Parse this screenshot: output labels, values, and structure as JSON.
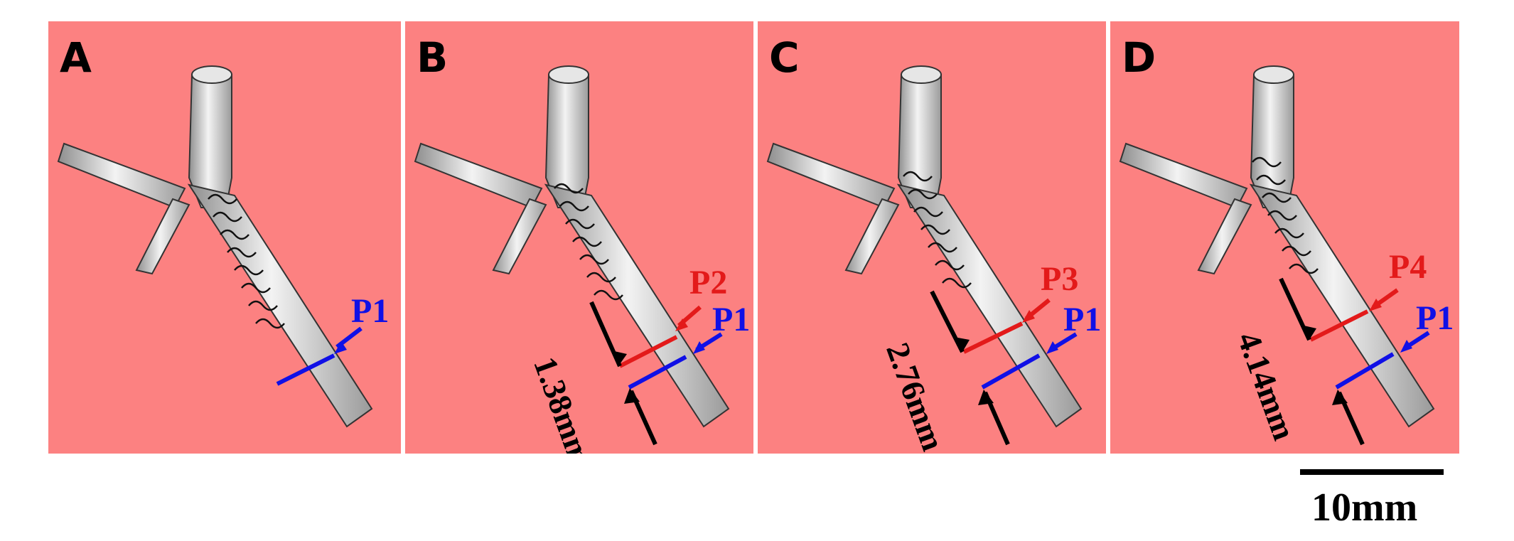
{
  "panels": [
    {
      "id": "A",
      "letter": "A",
      "markers": [
        {
          "label": "P1",
          "color": "#1010e6"
        }
      ]
    },
    {
      "id": "B",
      "letter": "B",
      "markers": [
        {
          "label": "P2",
          "color": "#e31a1a"
        },
        {
          "label": "P1",
          "color": "#1010e6"
        }
      ],
      "distance_label": "1.38mm"
    },
    {
      "id": "C",
      "letter": "C",
      "markers": [
        {
          "label": "P3",
          "color": "#e31a1a"
        },
        {
          "label": "P1",
          "color": "#1010e6"
        }
      ],
      "distance_label": "2.76mm"
    },
    {
      "id": "D",
      "letter": "D",
      "markers": [
        {
          "label": "P4",
          "color": "#e31a1a"
        },
        {
          "label": "P1",
          "color": "#1010e6"
        }
      ],
      "distance_label": "4.14mm"
    }
  ],
  "scale_bar": {
    "label": "10mm"
  },
  "colors": {
    "background": "#fc8181",
    "vessel": "#d9d9d9",
    "stent": "#111111",
    "blue_marker": "#1010e6",
    "red_marker": "#e31a1a"
  }
}
